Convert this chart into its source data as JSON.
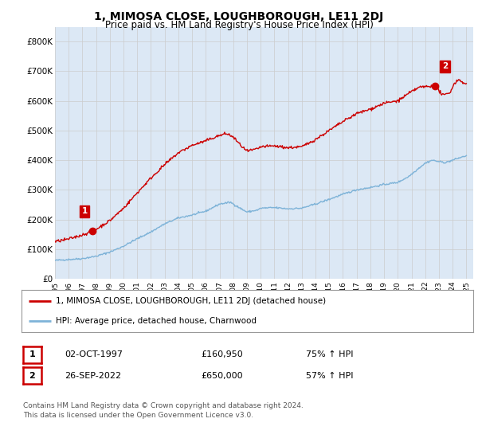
{
  "title": "1, MIMOSA CLOSE, LOUGHBOROUGH, LE11 2DJ",
  "subtitle": "Price paid vs. HM Land Registry's House Price Index (HPI)",
  "background_color": "#ffffff",
  "grid_color": "#cccccc",
  "plot_bg_color": "#dce8f5",
  "red_line_color": "#cc0000",
  "blue_line_color": "#7eb3d8",
  "ylim": [
    0,
    850000
  ],
  "yticks": [
    0,
    100000,
    200000,
    300000,
    400000,
    500000,
    600000,
    700000,
    800000
  ],
  "ytick_labels": [
    "£0",
    "£100K",
    "£200K",
    "£300K",
    "£400K",
    "£500K",
    "£600K",
    "£700K",
    "£800K"
  ],
  "xlim_start": 1995.0,
  "xlim_end": 2025.5,
  "xtick_years": [
    1995,
    1996,
    1997,
    1998,
    1999,
    2000,
    2001,
    2002,
    2003,
    2004,
    2005,
    2006,
    2007,
    2008,
    2009,
    2010,
    2011,
    2012,
    2013,
    2014,
    2015,
    2016,
    2017,
    2018,
    2019,
    2020,
    2021,
    2022,
    2023,
    2024,
    2025
  ],
  "sale1_x": 1997.75,
  "sale1_y": 160950,
  "sale1_label": "1",
  "sale2_x": 2022.73,
  "sale2_y": 650000,
  "sale2_label": "2",
  "legend_line1": "1, MIMOSA CLOSE, LOUGHBOROUGH, LE11 2DJ (detached house)",
  "legend_line2": "HPI: Average price, detached house, Charnwood",
  "table_row1": [
    "1",
    "02-OCT-1997",
    "£160,950",
    "75% ↑ HPI"
  ],
  "table_row2": [
    "2",
    "26-SEP-2022",
    "£650,000",
    "57% ↑ HPI"
  ],
  "footer": "Contains HM Land Registry data © Crown copyright and database right 2024.\nThis data is licensed under the Open Government Licence v3.0.",
  "marker_color": "#cc0000",
  "marker_size": 6
}
